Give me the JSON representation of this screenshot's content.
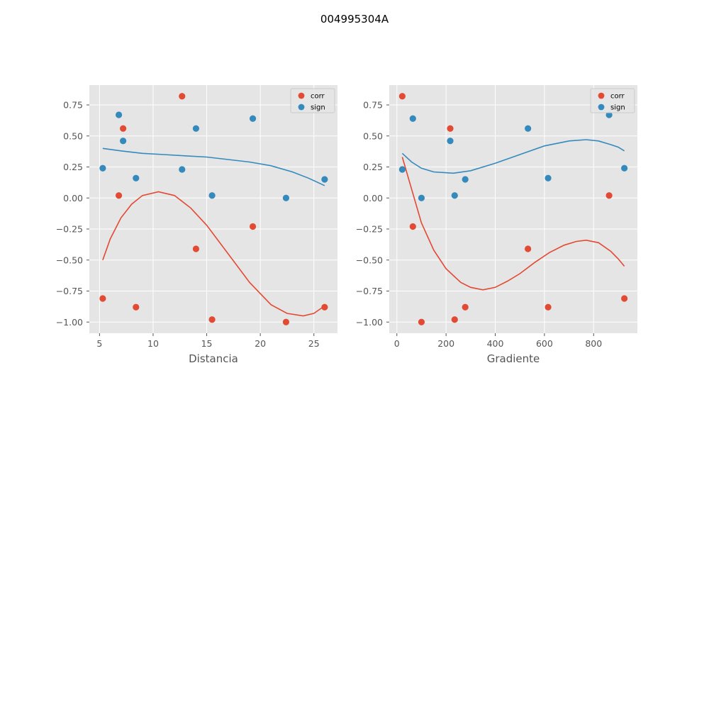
{
  "figure": {
    "suptitle": "004995304A"
  },
  "colors": {
    "axes_bg": "#E5E5E5",
    "grid": "#FFFFFF",
    "tick_text": "#555555",
    "corr": "#E24A33",
    "sign": "#348ABD",
    "legend_bg": "#E5E5E5",
    "legend_border": "#CCCCCC"
  },
  "chart_data": [
    {
      "type": "scatter",
      "xlabel": "Distancia",
      "ylabel": "",
      "xlim": [
        4.05,
        27.2
      ],
      "ylim": [
        -1.09,
        0.91
      ],
      "xticks": [
        5,
        10,
        15,
        20,
        25
      ],
      "xtick_labels": [
        "5",
        "10",
        "15",
        "20",
        "25"
      ],
      "yticks": [
        -1.0,
        -0.75,
        -0.5,
        -0.25,
        0.0,
        0.25,
        0.5,
        0.75
      ],
      "ytick_labels": [
        "−1.00",
        "−0.75",
        "−0.50",
        "−0.25",
        "0.00",
        "0.25",
        "0.50",
        "0.75"
      ],
      "grid": true,
      "legend_position": "top-right",
      "series": [
        {
          "name": "corr",
          "color": "#E24A33",
          "points": [
            [
              5.3,
              -0.81
            ],
            [
              6.8,
              0.02
            ],
            [
              7.2,
              0.56
            ],
            [
              8.4,
              -0.88
            ],
            [
              12.7,
              0.82
            ],
            [
              14.0,
              -0.41
            ],
            [
              15.5,
              -0.98
            ],
            [
              19.3,
              -0.23
            ],
            [
              22.4,
              -1.0
            ],
            [
              26.0,
              -0.88
            ]
          ],
          "fit_x": [
            5.3,
            6.0,
            7.0,
            8.0,
            9.0,
            10.5,
            12.0,
            13.5,
            15.0,
            17.0,
            19.0,
            21.0,
            22.5,
            24.0,
            25.0,
            26.0
          ],
          "fit_y": [
            -0.5,
            -0.33,
            -0.16,
            -0.05,
            0.02,
            0.05,
            0.02,
            -0.08,
            -0.22,
            -0.45,
            -0.68,
            -0.86,
            -0.93,
            -0.95,
            -0.93,
            -0.87
          ]
        },
        {
          "name": "sign",
          "color": "#348ABD",
          "points": [
            [
              5.3,
              0.24
            ],
            [
              6.8,
              0.67
            ],
            [
              7.2,
              0.46
            ],
            [
              8.4,
              0.16
            ],
            [
              12.7,
              0.23
            ],
            [
              14.0,
              0.56
            ],
            [
              15.5,
              0.02
            ],
            [
              19.3,
              0.64
            ],
            [
              22.4,
              0.0
            ],
            [
              26.0,
              0.15
            ]
          ],
          "fit_x": [
            5.3,
            7.0,
            9.0,
            11.0,
            13.0,
            15.0,
            17.0,
            19.0,
            21.0,
            23.0,
            24.5,
            26.0
          ],
          "fit_y": [
            0.4,
            0.38,
            0.36,
            0.35,
            0.34,
            0.33,
            0.31,
            0.29,
            0.26,
            0.21,
            0.16,
            0.1
          ]
        }
      ]
    },
    {
      "type": "scatter",
      "xlabel": "Gradiente",
      "ylabel": "",
      "xlim": [
        -31,
        978
      ],
      "ylim": [
        -1.09,
        0.91
      ],
      "xticks": [
        0,
        200,
        400,
        600,
        800
      ],
      "xtick_labels": [
        "0",
        "200",
        "400",
        "600",
        "800"
      ],
      "yticks": [
        -1.0,
        -0.75,
        -0.5,
        -0.25,
        0.0,
        0.25,
        0.5,
        0.75
      ],
      "ytick_labels": [
        "−1.00",
        "−0.75",
        "−0.50",
        "−0.25",
        "0.00",
        "0.25",
        "0.50",
        "0.75"
      ],
      "grid": true,
      "legend_position": "top-right",
      "series": [
        {
          "name": "corr",
          "color": "#E24A33",
          "points": [
            [
              22,
              0.82
            ],
            [
              65,
              -0.23
            ],
            [
              100,
              -1.0
            ],
            [
              217,
              0.56
            ],
            [
              235,
              -0.98
            ],
            [
              278,
              -0.88
            ],
            [
              533,
              -0.41
            ],
            [
              615,
              -0.88
            ],
            [
              863,
              0.02
            ],
            [
              925,
              -0.81
            ]
          ],
          "fit_x": [
            22,
            60,
            100,
            150,
            200,
            260,
            300,
            350,
            400,
            450,
            500,
            560,
            620,
            680,
            730,
            770,
            820,
            870,
            900,
            925
          ],
          "fit_y": [
            0.33,
            0.07,
            -0.2,
            -0.42,
            -0.57,
            -0.68,
            -0.72,
            -0.74,
            -0.72,
            -0.67,
            -0.61,
            -0.52,
            -0.44,
            -0.38,
            -0.35,
            -0.34,
            -0.36,
            -0.43,
            -0.49,
            -0.55
          ]
        },
        {
          "name": "sign",
          "color": "#348ABD",
          "points": [
            [
              22,
              0.23
            ],
            [
              65,
              0.64
            ],
            [
              100,
              0.0
            ],
            [
              217,
              0.46
            ],
            [
              235,
              0.02
            ],
            [
              278,
              0.15
            ],
            [
              533,
              0.56
            ],
            [
              615,
              0.16
            ],
            [
              863,
              0.67
            ],
            [
              925,
              0.24
            ]
          ],
          "fit_x": [
            22,
            60,
            100,
            150,
            230,
            300,
            400,
            500,
            600,
            700,
            770,
            820,
            870,
            900,
            925
          ],
          "fit_y": [
            0.36,
            0.29,
            0.24,
            0.21,
            0.2,
            0.22,
            0.28,
            0.35,
            0.42,
            0.46,
            0.47,
            0.46,
            0.43,
            0.41,
            0.38
          ]
        }
      ]
    }
  ]
}
